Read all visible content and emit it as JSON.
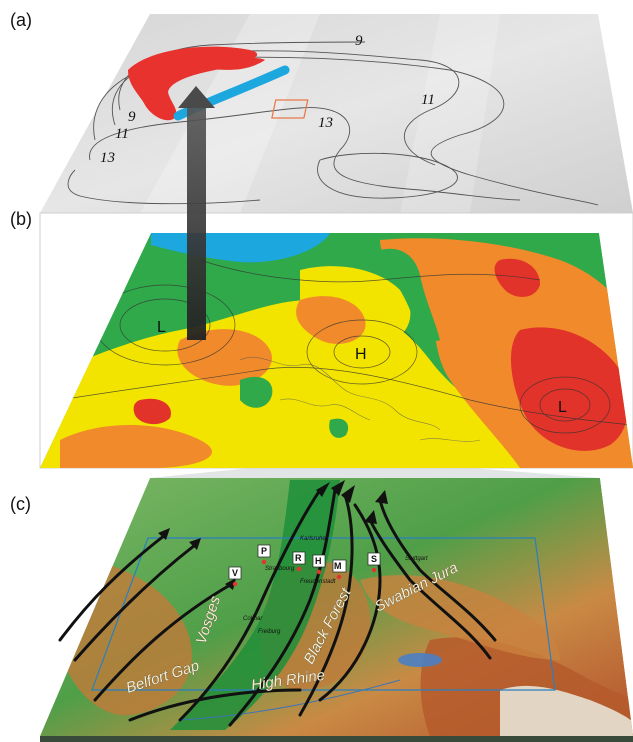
{
  "panels": {
    "a": {
      "label": "(a)",
      "contour_labels": [
        "9",
        "9",
        "11",
        "11",
        "13",
        "13"
      ]
    },
    "b": {
      "label": "(b)",
      "pressure_labels": [
        "L",
        "H",
        "L"
      ]
    },
    "c": {
      "label": "(c)",
      "regions": [
        "Vosges",
        "Black Forest",
        "Swabian Jura",
        "Belfort Gap",
        "High Rhine"
      ],
      "stations": [
        "P",
        "R",
        "H",
        "M",
        "S",
        "V"
      ],
      "cities": [
        "Karlsruhe",
        "Strasbourg",
        "Freudenstadt",
        "Stuttgart",
        "Freiburg",
        "Colmar"
      ]
    }
  },
  "colors": {
    "precip_red": "#e8322e",
    "precip_blue": "#1ca7df",
    "field_green": "#2fa94a",
    "field_yellow": "#f3e400",
    "field_orange": "#f08a2a",
    "field_red": "#e2332a",
    "terrain_green": "#49a34a",
    "terrain_brown": "#b5652f"
  }
}
